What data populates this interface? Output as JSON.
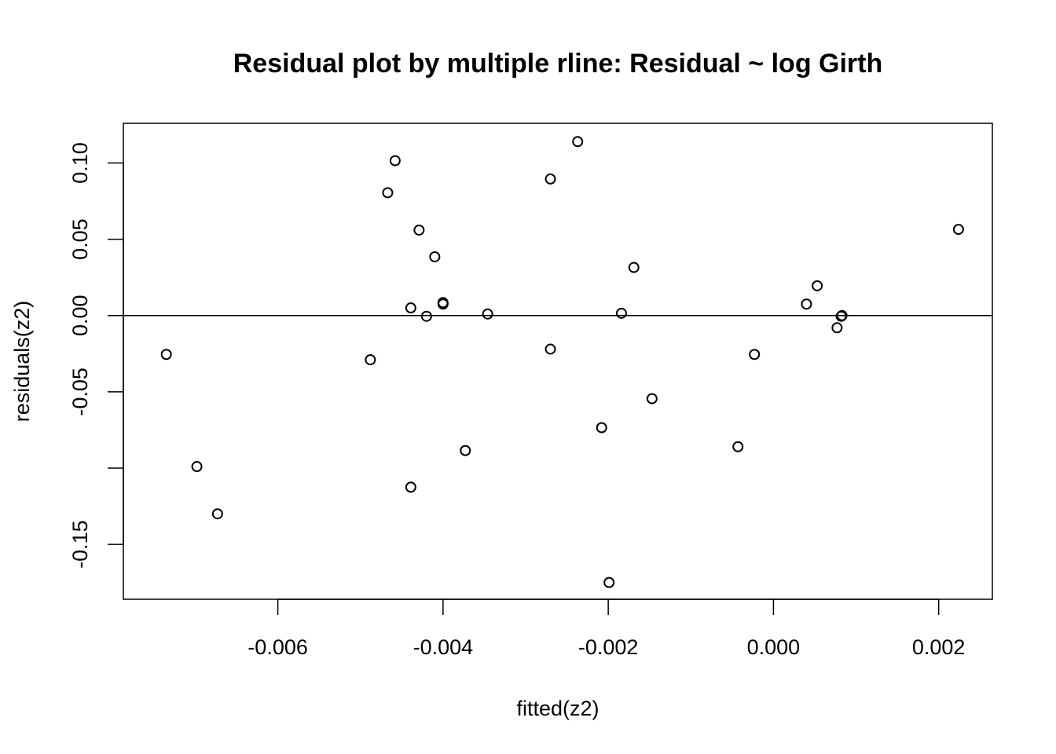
{
  "chart_data": {
    "type": "scatter",
    "title": "Residual plot by multiple rline: Residual ~ log Girth",
    "xlabel": "fitted(z2)",
    "ylabel": "residuals(z2)",
    "xlim": [
      -0.00787,
      0.00265
    ],
    "ylim": [
      -0.186,
      0.126
    ],
    "x_ticks": [
      -0.006,
      -0.004,
      -0.002,
      0.0,
      0.002
    ],
    "x_tick_labels": [
      "-0.006",
      "-0.004",
      "-0.002",
      "0.000",
      "0.002"
    ],
    "y_ticks": [
      -0.15,
      -0.1,
      -0.05,
      0.0,
      0.05,
      0.1
    ],
    "y_tick_labels": [
      "-0.15",
      "",
      "-0.05",
      "0.00",
      "0.05",
      "0.10"
    ],
    "reference_line_y": 0.0,
    "grid": false,
    "colors": {
      "points": "#000000",
      "axes": "#000000",
      "background": "#ffffff"
    },
    "points": [
      {
        "x": -0.00735,
        "y": -0.0255
      },
      {
        "x": -0.00698,
        "y": -0.099
      },
      {
        "x": -0.00673,
        "y": -0.13
      },
      {
        "x": -0.00488,
        "y": -0.029
      },
      {
        "x": -0.00467,
        "y": 0.0805
      },
      {
        "x": -0.00458,
        "y": 0.1015
      },
      {
        "x": -0.00439,
        "y": 0.005
      },
      {
        "x": -0.00439,
        "y": -0.1125
      },
      {
        "x": -0.00429,
        "y": 0.056
      },
      {
        "x": -0.0042,
        "y": -0.0005
      },
      {
        "x": -0.0041,
        "y": 0.0385
      },
      {
        "x": -0.004,
        "y": 0.0085
      },
      {
        "x": -0.004,
        "y": 0.0075
      },
      {
        "x": -0.00373,
        "y": -0.0885
      },
      {
        "x": -0.00346,
        "y": 0.001
      },
      {
        "x": -0.0027,
        "y": 0.0895
      },
      {
        "x": -0.0027,
        "y": -0.022
      },
      {
        "x": -0.00237,
        "y": 0.114
      },
      {
        "x": -0.00208,
        "y": -0.0735
      },
      {
        "x": -0.00199,
        "y": -0.175
      },
      {
        "x": -0.00184,
        "y": 0.0015
      },
      {
        "x": -0.00169,
        "y": 0.0315
      },
      {
        "x": -0.00147,
        "y": -0.0545
      },
      {
        "x": -0.00043,
        "y": -0.086
      },
      {
        "x": -0.00023,
        "y": -0.0255
      },
      {
        "x": 0.0004,
        "y": 0.0075
      },
      {
        "x": 0.00053,
        "y": 0.0195
      },
      {
        "x": 0.00077,
        "y": -0.008
      },
      {
        "x": 0.00082,
        "y": -0.0005
      },
      {
        "x": 0.00083,
        "y": 0.0
      },
      {
        "x": 0.00224,
        "y": 0.0565
      }
    ]
  }
}
